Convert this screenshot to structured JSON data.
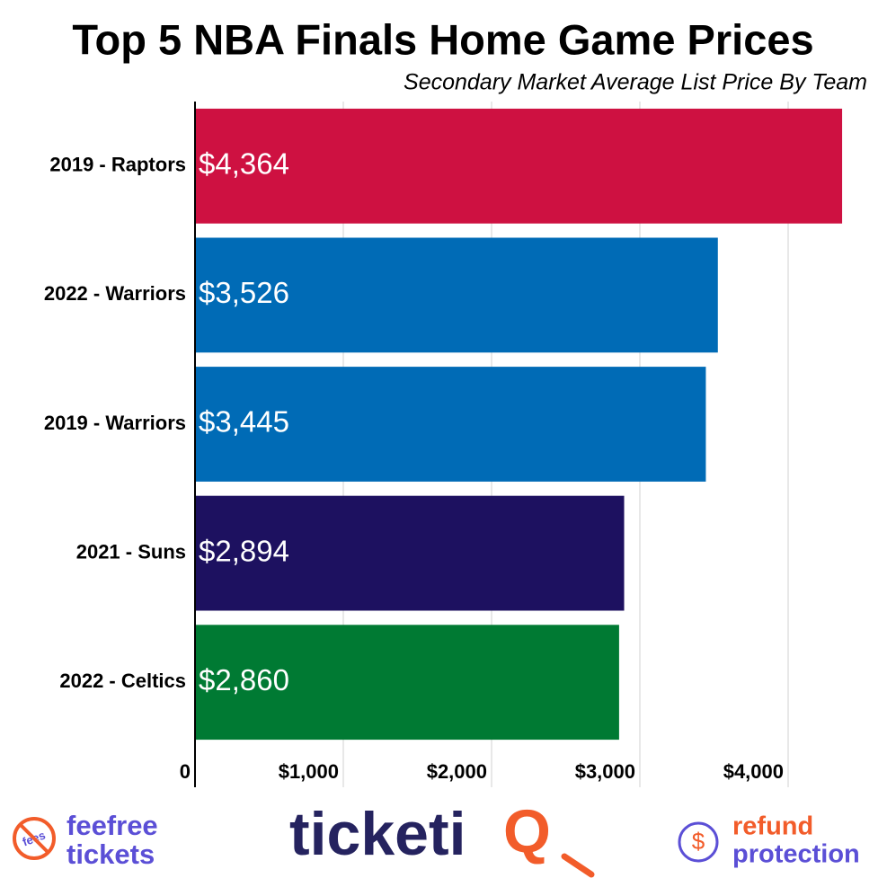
{
  "chart_data": {
    "type": "bar",
    "title": "Top 5 NBA Finals Home Game Prices",
    "subtitle": "Secondary Market Average List Price By Team",
    "categories": [
      "2019 - Raptors",
      "2022 - Warriors",
      "2019 - Warriors",
      "2021 - Suns",
      "2022 - Celtics"
    ],
    "values": [
      4364,
      3526,
      3445,
      2894,
      2860
    ],
    "value_labels": [
      "$4,364",
      "$3,526",
      "$3,445",
      "$2,894",
      "$2,860"
    ],
    "colors": [
      "#ce1141",
      "#006bb6",
      "#006bb6",
      "#1d1160",
      "#007a33"
    ],
    "xlim": [
      0,
      4500
    ],
    "xticks": [
      0,
      {
        "value": 1000,
        "label": "$1,000"
      },
      {
        "value": 2000,
        "label": "$2,000"
      },
      {
        "value": 3000,
        "label": "$3,000"
      },
      {
        "value": 4000,
        "label": "$4,000"
      }
    ],
    "grid": true
  },
  "footer": {
    "fees_icon": "fees",
    "feefree": "feefree",
    "tickets": "tickets",
    "logo": "ticketi",
    "logo_q": "Q",
    "refund_icon": "$",
    "refund": "refund",
    "protection": "protection"
  }
}
